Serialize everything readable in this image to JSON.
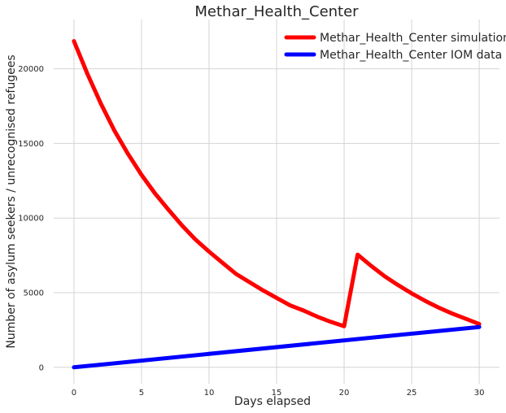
{
  "chart_data": {
    "type": "line",
    "title": "Methar_Health_Center",
    "xlabel": "Days elapsed",
    "ylabel": "Number of asylum seekers / unrecognised refugees",
    "xlim": [
      -1.5,
      31.5
    ],
    "ylim": [
      -1100,
      23300
    ],
    "xticks": [
      0,
      5,
      10,
      15,
      20,
      25,
      30
    ],
    "yticks": [
      0,
      5000,
      10000,
      15000,
      20000
    ],
    "grid": true,
    "legend_position": "top-right",
    "series": [
      {
        "name": "Methar_Health_Center simulation",
        "color": "#ff0000",
        "x": [
          0,
          1,
          2,
          3,
          4,
          5,
          6,
          7,
          8,
          9,
          10,
          11,
          12,
          13,
          14,
          15,
          16,
          17,
          18,
          19,
          20,
          21,
          22,
          23,
          24,
          25,
          26,
          27,
          28,
          29,
          30
        ],
        "y": [
          21850,
          19650,
          17650,
          15850,
          14300,
          12900,
          11650,
          10550,
          9500,
          8550,
          7750,
          7000,
          6250,
          5700,
          5150,
          4650,
          4150,
          3800,
          3400,
          3050,
          2750,
          7550,
          6800,
          6100,
          5500,
          4950,
          4450,
          4000,
          3600,
          3250,
          2900
        ]
      },
      {
        "name": "Methar_Health_Center IOM data",
        "color": "#0000ff",
        "x": [
          0,
          30
        ],
        "y": [
          0,
          2700
        ]
      }
    ]
  }
}
